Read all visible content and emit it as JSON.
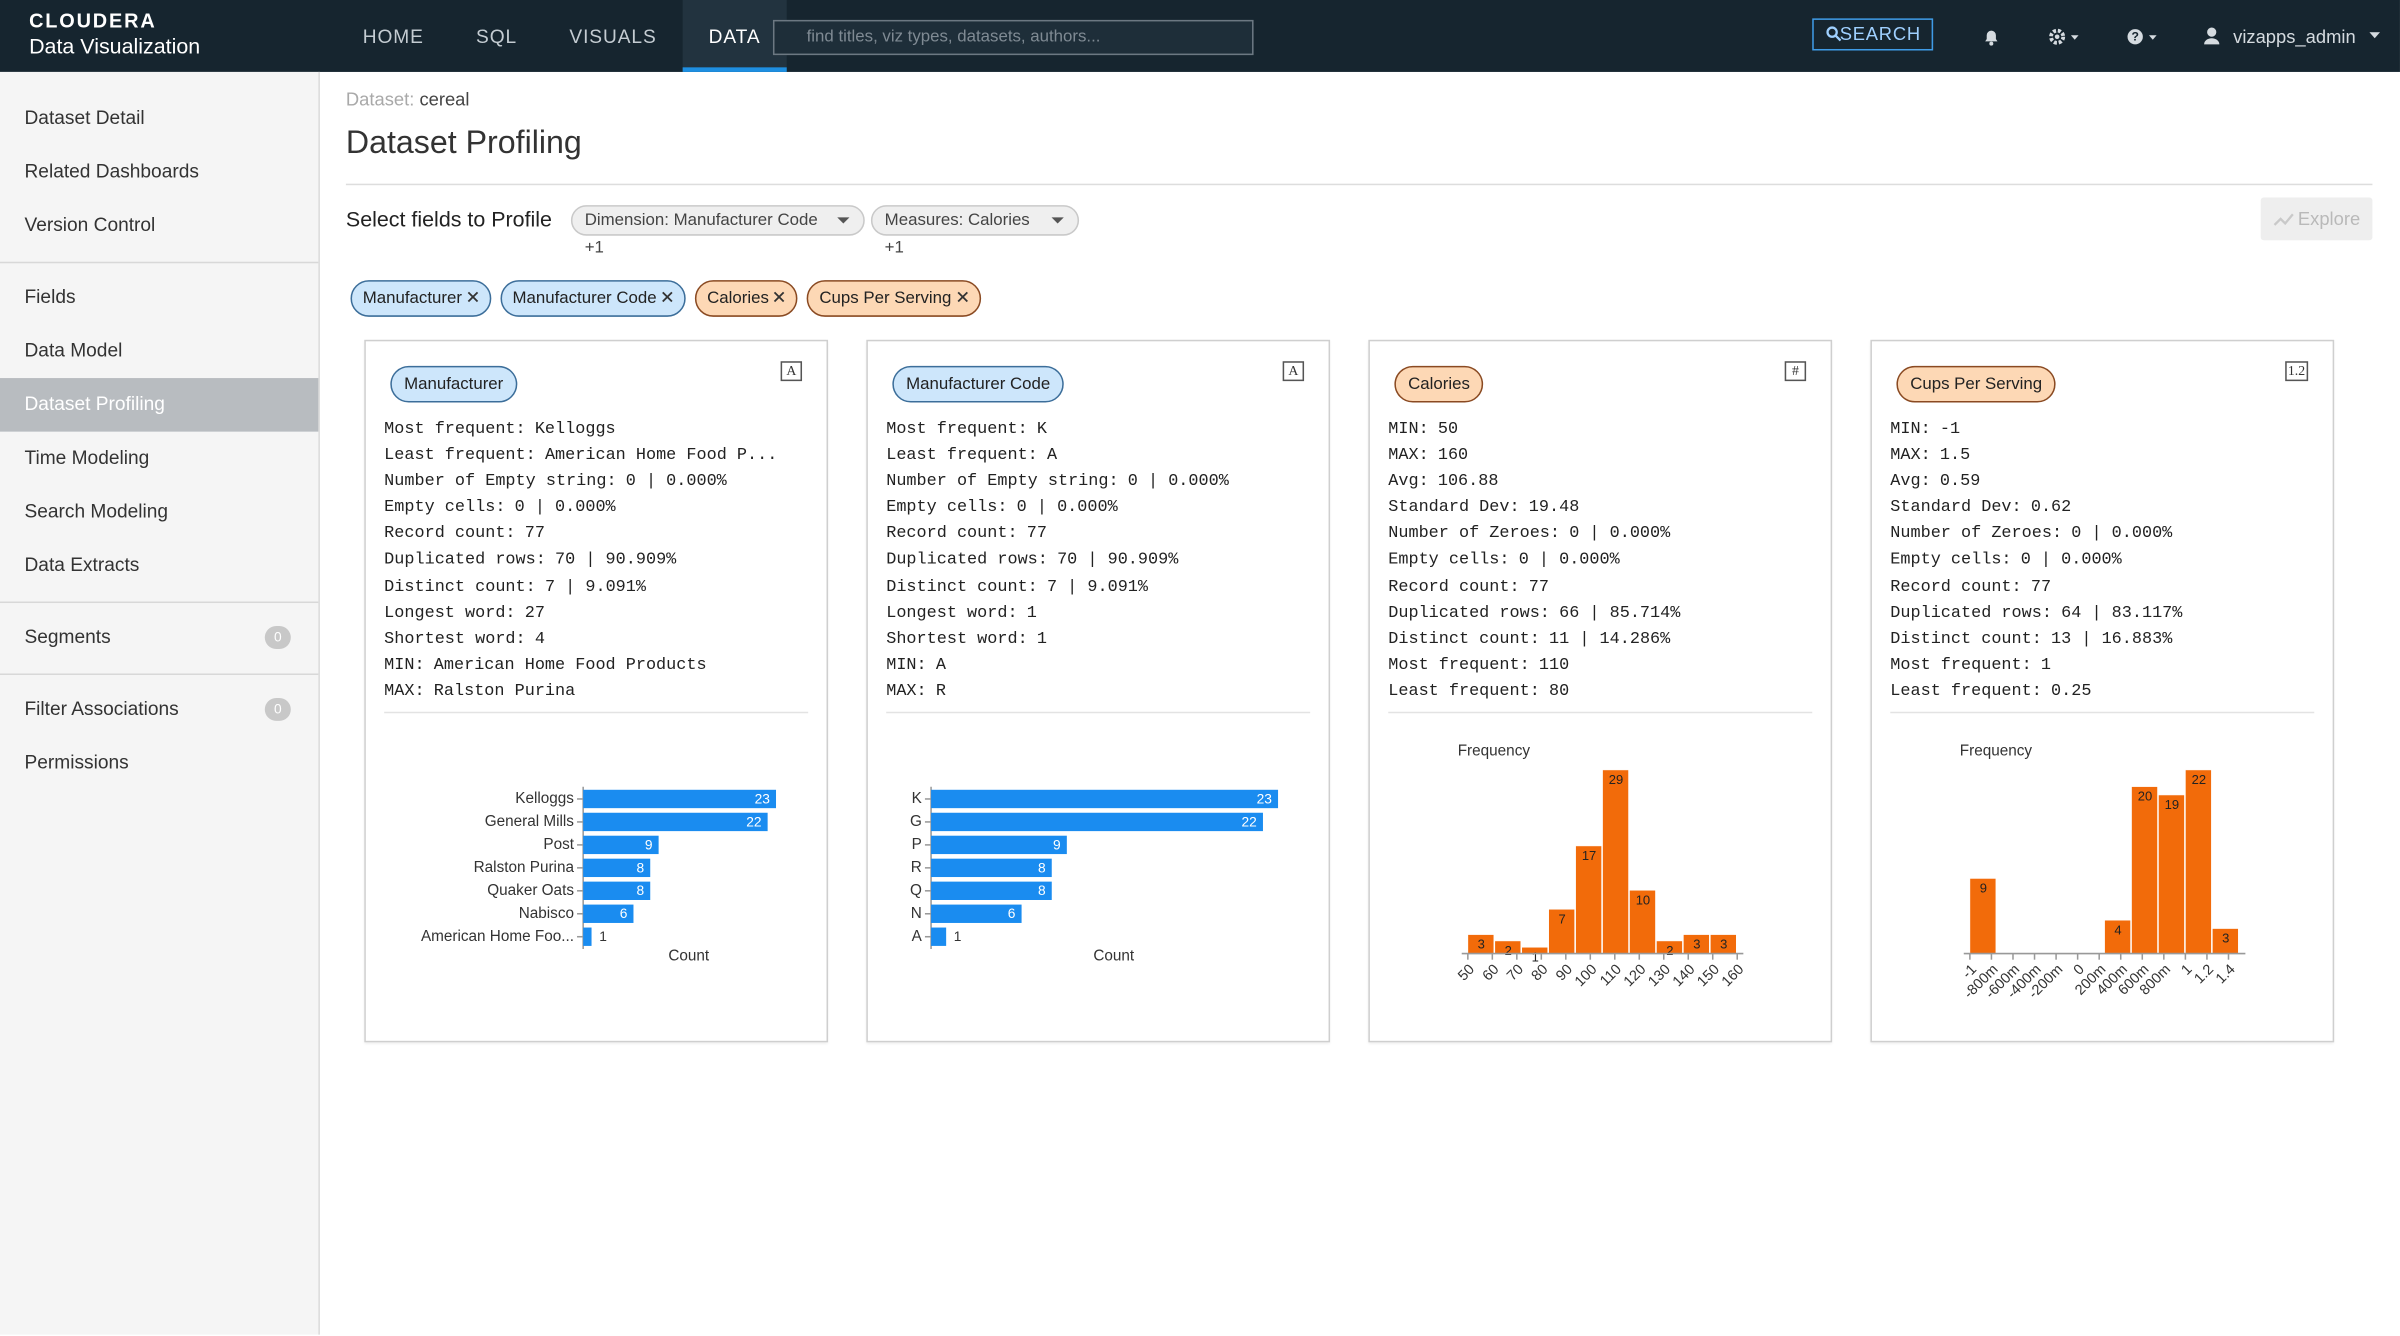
{
  "nav": {
    "brand": "CLOUDERA",
    "product": "Data Visualization",
    "tabs": [
      "HOME",
      "SQL",
      "VISUALS",
      "DATA"
    ],
    "active_tab": 3,
    "search_placeholder": "find titles, viz types, datasets, authors...",
    "search_button": "SEARCH",
    "user": "vizapps_admin"
  },
  "sidebar": {
    "groups": [
      [
        {
          "label": "Dataset Detail"
        },
        {
          "label": "Related Dashboards"
        },
        {
          "label": "Version Control"
        }
      ],
      [
        {
          "label": "Fields"
        },
        {
          "label": "Data Model"
        },
        {
          "label": "Dataset Profiling",
          "active": true
        },
        {
          "label": "Time Modeling"
        },
        {
          "label": "Search Modeling"
        },
        {
          "label": "Data Extracts"
        }
      ],
      [
        {
          "label": "Segments",
          "badge": 0
        }
      ],
      [
        {
          "label": "Filter Associations",
          "badge": 0
        },
        {
          "label": "Permissions"
        }
      ]
    ]
  },
  "header": {
    "dataset_label": "Dataset:",
    "dataset_name": "cereal",
    "title": "Dataset Profiling"
  },
  "controls": {
    "label": "Select fields to Profile",
    "dimension_dropdown": "Dimension: Manufacturer Code +1",
    "measure_dropdown": "Measures: Calories +1",
    "explore": "Explore"
  },
  "chips": [
    {
      "label": "Manufacturer",
      "kind": "dimension"
    },
    {
      "label": "Manufacturer Code",
      "kind": "dimension"
    },
    {
      "label": "Calories",
      "kind": "measure"
    },
    {
      "label": "Cups Per Serving",
      "kind": "measure"
    }
  ],
  "cards": [
    {
      "title": "Manufacturer",
      "kind": "dimension",
      "icon": "A",
      "stats": [
        {
          "key": "Most frequent:",
          "value": "Kelloggs"
        },
        {
          "key": "Least frequent:",
          "value": "American Home Food P..."
        },
        {
          "key": "Number of Empty string:",
          "value": "0 | 0.000%"
        },
        {
          "key": "Empty cells:",
          "value": "0 | 0.000%"
        },
        {
          "key": "Record count:",
          "value": 77
        },
        {
          "key": "Duplicated rows:",
          "value": "70 | 90.909%"
        },
        {
          "key": "Distinct count:",
          "value": "7 | 9.091%"
        },
        {
          "key": "Longest word:",
          "value": 27
        },
        {
          "key": "Shortest word:",
          "value": 4
        },
        {
          "key": "MIN:",
          "value": "American Home Food Products"
        },
        {
          "key": "MAX:",
          "value": "Ralston Purina"
        }
      ],
      "chart": {
        "type": "hbar",
        "categories": [
          "Kelloggs",
          "General Mills",
          "Post",
          "Ralston Purina",
          "Quaker Oats",
          "Nabisco",
          "American Home Foo..."
        ],
        "values": [
          23,
          22,
          9,
          8,
          8,
          6,
          1
        ],
        "xlim": [
          0,
          23
        ],
        "xlabel": "Count",
        "color": "#1a8cf0"
      }
    },
    {
      "title": "Manufacturer Code",
      "kind": "dimension",
      "icon": "A",
      "stats": [
        {
          "key": "Most frequent:",
          "value": "K"
        },
        {
          "key": "Least frequent:",
          "value": "A"
        },
        {
          "key": "Number of Empty string:",
          "value": "0 | 0.000%"
        },
        {
          "key": "Empty cells:",
          "value": "0 | 0.000%"
        },
        {
          "key": "Record count:",
          "value": 77
        },
        {
          "key": "Duplicated rows:",
          "value": "70 | 90.909%"
        },
        {
          "key": "Distinct count:",
          "value": "7 | 9.091%"
        },
        {
          "key": "Longest word:",
          "value": 1
        },
        {
          "key": "Shortest word:",
          "value": 1
        },
        {
          "key": "MIN:",
          "value": "A"
        },
        {
          "key": "MAX:",
          "value": "R"
        }
      ],
      "chart": {
        "type": "hbar",
        "categories": [
          "K",
          "G",
          "P",
          "R",
          "Q",
          "N",
          "A"
        ],
        "values": [
          23,
          22,
          9,
          8,
          8,
          6,
          1
        ],
        "xlim": [
          0,
          23
        ],
        "xlabel": "Count",
        "color": "#1a8cf0"
      }
    },
    {
      "title": "Calories",
      "kind": "measure",
      "icon": "#",
      "stats": [
        {
          "key": "MIN:",
          "value": 50
        },
        {
          "key": "MAX:",
          "value": 160
        },
        {
          "key": "Avg:",
          "value": 106.88
        },
        {
          "key": "Standard Dev:",
          "value": 19.48
        },
        {
          "key": "Number of Zeroes:",
          "value": "0 | 0.000%"
        },
        {
          "key": "Empty cells:",
          "value": "0 | 0.000%"
        },
        {
          "key": "Record count:",
          "value": 77
        },
        {
          "key": "Duplicated rows:",
          "value": "66 | 85.714%"
        },
        {
          "key": "Distinct count:",
          "value": "11 | 14.286%"
        },
        {
          "key": "Most frequent:",
          "value": 110
        },
        {
          "key": "Least frequent:",
          "value": 80
        }
      ],
      "chart": {
        "type": "histogram",
        "ylabel": "Frequency",
        "bins": [
          50,
          61,
          72,
          83,
          94,
          105,
          116,
          127,
          138,
          149,
          160
        ],
        "values": [
          3,
          2,
          1,
          7,
          17,
          29,
          10,
          2,
          3,
          3
        ],
        "xlim": [
          50,
          160
        ],
        "ylim": [
          0,
          29
        ],
        "xticks": [
          50,
          60,
          70,
          80,
          90,
          100,
          110,
          120,
          130,
          140,
          150,
          160
        ],
        "color": "#f26b0a"
      }
    },
    {
      "title": "Cups Per Serving",
      "kind": "measure",
      "icon": "1.2",
      "stats": [
        {
          "key": "MIN:",
          "value": -1
        },
        {
          "key": "MAX:",
          "value": 1.5
        },
        {
          "key": "Avg:",
          "value": 0.59
        },
        {
          "key": "Standard Dev:",
          "value": 0.62
        },
        {
          "key": "Number of Zeroes:",
          "value": "0 | 0.000%"
        },
        {
          "key": "Empty cells:",
          "value": "0 | 0.000%"
        },
        {
          "key": "Record count:",
          "value": 77
        },
        {
          "key": "Duplicated rows:",
          "value": "64 | 83.117%"
        },
        {
          "key": "Distinct count:",
          "value": "13 | 16.883%"
        },
        {
          "key": "Most frequent:",
          "value": 1
        },
        {
          "key": "Least frequent:",
          "value": 0.25
        }
      ],
      "chart": {
        "type": "histogram",
        "ylabel": "Frequency",
        "bins": [
          -1,
          -0.75,
          -0.5,
          -0.25,
          0,
          0.25,
          0.5,
          0.75,
          1,
          1.25,
          1.5
        ],
        "values": [
          9,
          0,
          0,
          0,
          0,
          4,
          20,
          19,
          22,
          3
        ],
        "xlim": [
          -1,
          1.5
        ],
        "ylim": [
          0,
          22
        ],
        "xticks": [
          -1,
          {
            "value": -0.8,
            "label": "-800m"
          },
          {
            "value": -0.6,
            "label": "-600m"
          },
          {
            "value": -0.4,
            "label": "-400m"
          },
          {
            "value": -0.2,
            "label": "-200m"
          },
          0,
          {
            "value": 0.2,
            "label": "200m"
          },
          {
            "value": 0.4,
            "label": "400m"
          },
          {
            "value": 0.6,
            "label": "600m"
          },
          {
            "value": 0.8,
            "label": "800m"
          },
          1,
          1.2,
          1.4
        ],
        "color": "#f26b0a"
      }
    }
  ]
}
